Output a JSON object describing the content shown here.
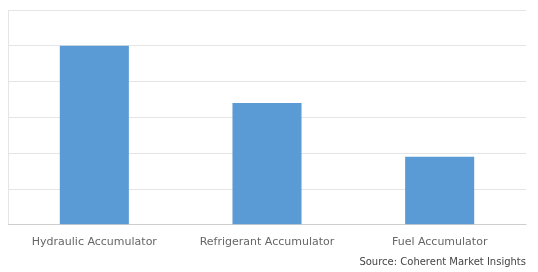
{
  "chart_data": {
    "type": "bar",
    "categories": [
      "Hydraulic Accumulator",
      "Refrigerant Accumulator",
      "Fuel Accumulator"
    ],
    "values": [
      100,
      68,
      38
    ],
    "color": "#5B9BD5",
    "ylim": [
      0,
      120
    ],
    "yticks": [
      0,
      20,
      40,
      60,
      80,
      100,
      120
    ],
    "grid": true,
    "tick_labels": "x",
    "annotation": "Source: Coherent Market Insights"
  }
}
